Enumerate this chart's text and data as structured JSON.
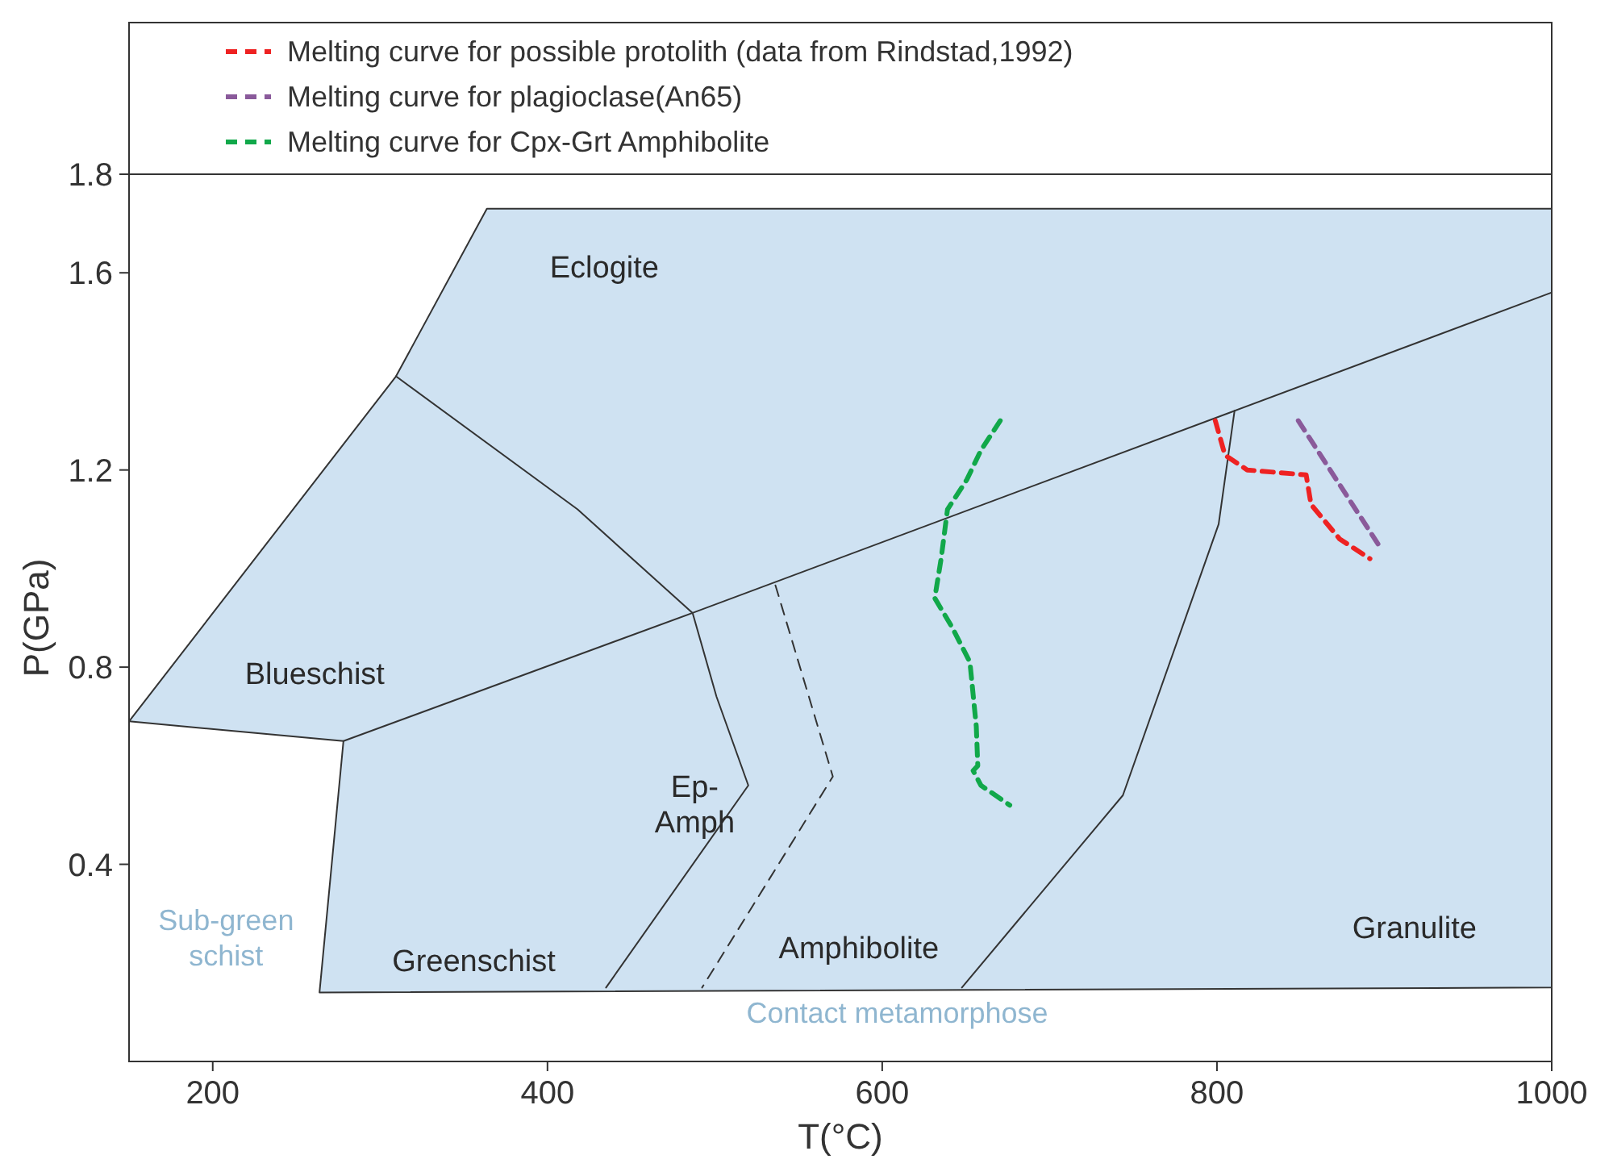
{
  "chart_data": {
    "type": "line",
    "xlabel": "T(°C)",
    "ylabel": "P(GPa)",
    "xlim": [
      150,
      1000
    ],
    "ylim": [
      0,
      1.8
    ],
    "xticks": [
      200,
      400,
      600,
      800,
      1000
    ],
    "yticks": [
      0.4,
      0.8,
      1.2,
      1.6,
      1.8
    ],
    "grid": false,
    "legend": "top",
    "marker": "none",
    "series": [
      {
        "type": "area",
        "color": "#cfe2f2",
        "x": [
          150,
          309.5,
          363.8,
          1000,
          1000,
          263.8,
          278.1,
          150
        ],
        "values": [
          0.69,
          1.39,
          1.73,
          1.73,
          0.15,
          0.14,
          0.65,
          0.69
        ]
      },
      {
        "color": "#333333",
        "x": [
          278.1,
          486.7,
          1000
        ],
        "values": [
          0.65,
          0.91,
          1.56
        ]
      },
      {
        "color": "#333333",
        "x": [
          309.5,
          418,
          486.7,
          501,
          520,
          435
        ],
        "values": [
          1.39,
          1.12,
          0.91,
          0.74,
          0.56,
          0.15
        ]
      },
      {
        "color": "#333333",
        "line_style": "dashed",
        "x": [
          536.2,
          570.5,
          492.4
        ],
        "values": [
          0.966,
          0.578,
          0.15
        ]
      },
      {
        "color": "#333333",
        "x": [
          647.6,
          743.8,
          801,
          810.5
        ],
        "values": [
          0.15,
          0.54,
          1.09,
          1.32
        ]
      },
      {
        "name": "Melting curve for possible protolith (data from Rindstad,1992)",
        "color": "#ee2222",
        "line_style": "dashed",
        "x": [
          799,
          804.8,
          818.1,
          853.3,
          856.2,
          873.3,
          891.4
        ],
        "values": [
          1.3,
          1.23,
          1.2,
          1.19,
          1.13,
          1.06,
          1.02
        ]
      },
      {
        "name": "Melting curve for plagioclase(An65)",
        "color": "#8a5a9a",
        "line_style": "dashed",
        "x": [
          848.6,
          896.2
        ],
        "values": [
          1.3,
          1.05
        ]
      },
      {
        "name": "Melting curve for Cpx-Grt Amphibolite",
        "color": "#11a84a",
        "line_style": "dashed",
        "x": [
          670.5,
          659,
          650.5,
          639,
          635.2,
          631.4,
          641.9,
          652.4,
          656.2,
          657.1,
          654.3,
          659,
          676.2
        ],
        "values": [
          1.3,
          1.24,
          1.18,
          1.12,
          1.02,
          0.94,
          0.88,
          0.81,
          0.68,
          0.6,
          0.59,
          0.56,
          0.52
        ]
      }
    ],
    "annotations": [
      "Eclogite",
      "Blueschist",
      "Greenschist",
      "Ep-\nAmph",
      "Amphibolite",
      "Granulite",
      "Sub-green\nschist",
      "Contact metamorphose"
    ]
  }
}
